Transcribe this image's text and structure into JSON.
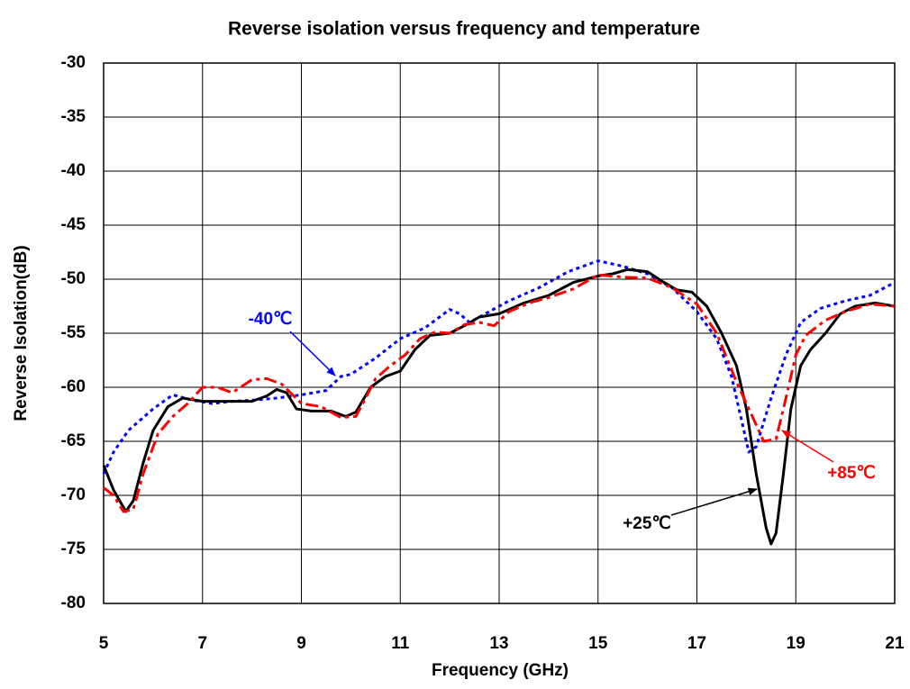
{
  "chart_data": {
    "type": "line",
    "title": "Reverse isolation versus frequency and temperature",
    "x_label": "Frequency (GHz)",
    "y_label": "Reverse Isolation(dB)",
    "xlim": [
      5,
      21
    ],
    "xticks": [
      5,
      7,
      9,
      11,
      13,
      15,
      17,
      19,
      21
    ],
    "ylim": [
      -80,
      -30
    ],
    "yticks": [
      -80,
      -75,
      -70,
      -65,
      -60,
      -55,
      -50,
      -45,
      -40,
      -35,
      -30
    ],
    "grid": true,
    "series": [
      {
        "name": "-40℃",
        "color": "#0000ff",
        "dash": "dotted",
        "x": [
          5,
          5.2,
          5.5,
          6,
          6.4,
          6.8,
          7.2,
          7.6,
          8,
          8.5,
          9,
          9.5,
          9.8,
          10,
          10.5,
          11,
          11.5,
          12,
          12.2,
          12.4,
          12.8,
          13.2,
          13.8,
          14.4,
          15,
          15.5,
          16,
          16.5,
          17,
          17.4,
          17.7,
          17.9,
          18.05,
          18.2,
          18.5,
          18.8,
          19.1,
          19.5,
          20,
          20.5,
          21
        ],
        "values": [
          -68,
          -66,
          -64,
          -62,
          -60.7,
          -61.2,
          -61.5,
          -61.3,
          -61.2,
          -61,
          -60.7,
          -60.3,
          -59,
          -58.8,
          -57.3,
          -55.5,
          -54.5,
          -52.8,
          -53.2,
          -54,
          -53,
          -52,
          -50.8,
          -49.3,
          -48.3,
          -48.8,
          -49.5,
          -50.8,
          -53,
          -55.5,
          -59,
          -63,
          -66,
          -65.5,
          -61,
          -57,
          -54,
          -52.7,
          -52,
          -51.5,
          -50.3
        ]
      },
      {
        "name": "+25℃",
        "color": "#000000",
        "dash": "solid",
        "x": [
          5,
          5.2,
          5.45,
          5.6,
          5.8,
          6,
          6.3,
          6.6,
          7,
          7.5,
          8,
          8.3,
          8.5,
          8.7,
          8.9,
          9.2,
          9.6,
          9.9,
          10.1,
          10.4,
          10.7,
          11,
          11.3,
          11.6,
          12,
          12.3,
          12.6,
          13,
          13.5,
          14,
          14.5,
          15,
          15.3,
          15.6,
          16,
          16.3,
          16.6,
          16.9,
          17.2,
          17.5,
          17.8,
          18,
          18.2,
          18.4,
          18.5,
          18.6,
          18.75,
          18.9,
          19.1,
          19.3,
          19.6,
          19.9,
          20.2,
          20.6,
          21
        ],
        "values": [
          -67.2,
          -69.5,
          -71.5,
          -70.5,
          -67,
          -64,
          -61.8,
          -61,
          -61.3,
          -61.3,
          -61.3,
          -60.8,
          -60.2,
          -60.5,
          -62,
          -62.2,
          -62.2,
          -62.7,
          -62.3,
          -60,
          -59,
          -58.5,
          -56.5,
          -55.2,
          -55,
          -54.3,
          -53.5,
          -53.2,
          -52.2,
          -51.5,
          -50.3,
          -49.7,
          -49.5,
          -49.1,
          -49.3,
          -50.2,
          -51,
          -51.2,
          -52.5,
          -55,
          -58,
          -62,
          -68,
          -73,
          -74.5,
          -73.5,
          -68,
          -62,
          -58,
          -56.5,
          -55,
          -53.2,
          -52.5,
          -52.2,
          -52.5
        ]
      },
      {
        "name": "+85℃",
        "color": "#ff0000",
        "dash": "dashdot",
        "x": [
          5,
          5.2,
          5.4,
          5.6,
          5.8,
          6.1,
          6.4,
          6.7,
          7,
          7.3,
          7.6,
          8,
          8.3,
          8.6,
          9,
          9.4,
          9.8,
          10.1,
          10.3,
          10.5,
          10.8,
          11.1,
          11.4,
          11.7,
          12,
          12.3,
          12.6,
          12.9,
          13.2,
          13.6,
          14,
          14.5,
          15,
          15.5,
          16,
          16.5,
          17,
          17.4,
          17.8,
          18.1,
          18.35,
          18.6,
          18.8,
          19,
          19.2,
          19.6,
          20,
          20.5,
          21
        ],
        "values": [
          -69.3,
          -70,
          -71.5,
          -71.3,
          -68,
          -64.3,
          -62.7,
          -61.5,
          -60,
          -60,
          -60.5,
          -59.3,
          -59.2,
          -59.7,
          -61.5,
          -61.8,
          -62.8,
          -62.7,
          -61,
          -59.2,
          -58,
          -57,
          -55.5,
          -54.9,
          -55,
          -54.2,
          -54,
          -54.3,
          -53,
          -52.2,
          -51.7,
          -50.9,
          -49.6,
          -49.8,
          -49.9,
          -50.8,
          -52.3,
          -55,
          -59.5,
          -62.5,
          -65,
          -64.8,
          -61,
          -57,
          -55.2,
          -53.8,
          -53,
          -52.3,
          -52.5
        ]
      }
    ]
  }
}
